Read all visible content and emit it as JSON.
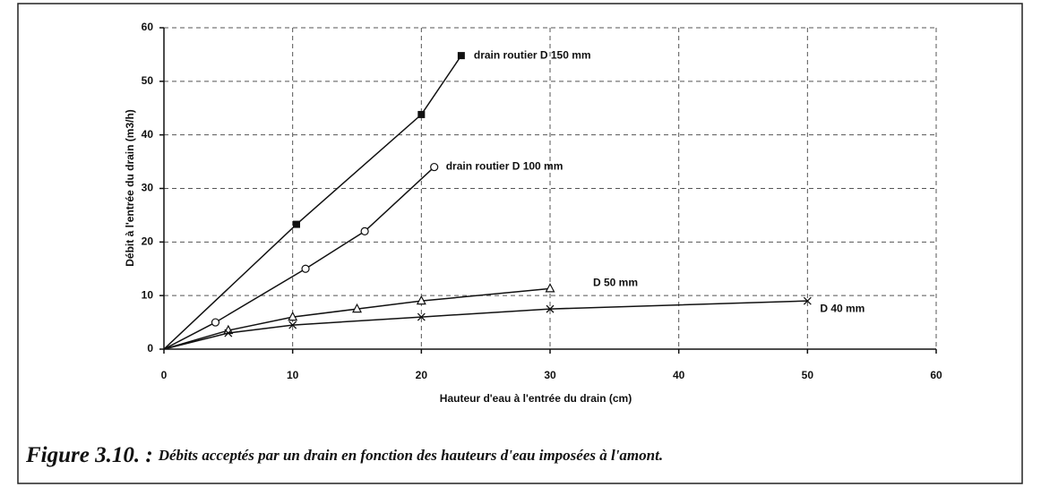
{
  "chart_data": {
    "type": "line",
    "x_label": "Hauteur d'eau à l'entrée du drain (cm)",
    "y_label": "Débit à l'entrée du drain (m3/h)",
    "caption_label": "Figure 3.10. :",
    "caption": "Débits acceptés par un drain en fonction des hauteurs d'eau imposées à l'amont.",
    "xlim": [
      0,
      60
    ],
    "xticks": [
      0,
      10,
      20,
      30,
      40,
      50,
      60
    ],
    "ylim": [
      0,
      60
    ],
    "yticks": [
      0,
      10,
      20,
      30,
      40,
      50,
      60
    ],
    "grid": true,
    "series": [
      {
        "name": "drain routier D 150 mm",
        "color": "#111111",
        "marker": "square-filled",
        "x": [
          0,
          10.3,
          20,
          23.1
        ],
        "values": [
          0,
          23.3,
          43.8,
          54.8
        ]
      },
      {
        "name": "drain routier D 100 mm",
        "color": "#111111",
        "marker": "circle-open",
        "x": [
          0,
          4,
          11,
          15.6,
          21
        ],
        "values": [
          0,
          5,
          15,
          22,
          34
        ]
      },
      {
        "name": "D 50 mm",
        "color": "#111111",
        "marker": "triangle-open",
        "x": [
          0,
          5,
          10,
          15,
          20,
          30
        ],
        "values": [
          0,
          3.5,
          6,
          7.5,
          9,
          11.3
        ]
      },
      {
        "name": "D 40 mm",
        "color": "#111111",
        "marker": "x",
        "x": [
          0,
          5,
          10,
          20,
          30,
          50
        ],
        "values": [
          0,
          3,
          4.5,
          6,
          7.5,
          9
        ]
      }
    ]
  }
}
